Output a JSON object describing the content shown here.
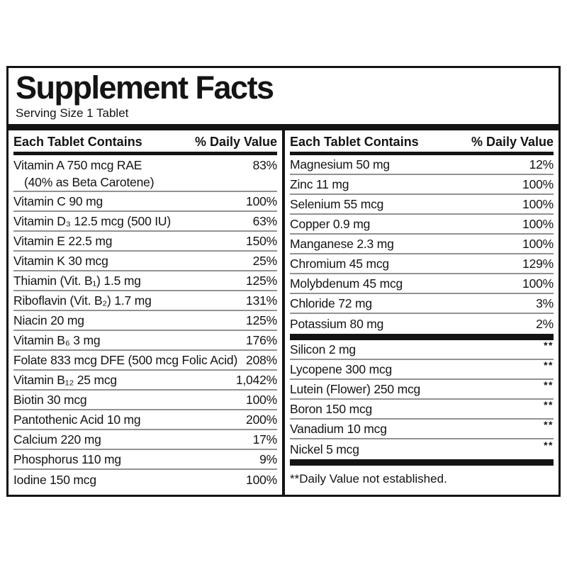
{
  "label": {
    "title": "Supplement Facts",
    "serving_size": "Serving Size 1 Tablet",
    "footnote": "**Daily Value not established.",
    "colors": {
      "text": "#141414",
      "thick_bar": "#141414",
      "row_separator": "#929292",
      "background": "#ffffff"
    },
    "columns": [
      {
        "header_name": "Each Tablet Contains",
        "header_value": "% Daily Value",
        "rows": [
          {
            "name": "Vitamin A 750 mcg RAE",
            "name2": "(40% as Beta Carotene)",
            "value": "83%"
          },
          {
            "name": "Vitamin C 90 mg",
            "value": "100%"
          },
          {
            "name": "Vitamin D₃ 12.5 mcg (500 IU)",
            "value": "63%"
          },
          {
            "name": "Vitamin E 22.5 mg",
            "value": "150%"
          },
          {
            "name": "Vitamin K 30 mcg",
            "value": "25%"
          },
          {
            "name": "Thiamin (Vit. B₁) 1.5 mg",
            "value": "125%"
          },
          {
            "name": "Riboflavin (Vit. B₂) 1.7 mg",
            "value": "131%"
          },
          {
            "name": "Niacin 20 mg",
            "value": "125%"
          },
          {
            "name": "Vitamin B₆ 3 mg",
            "value": "176%"
          },
          {
            "name": "Folate 833 mcg DFE (500 mcg Folic Acid)",
            "value": "208%"
          },
          {
            "name": "Vitamin B₁₂ 25 mcg",
            "value": "1,042%"
          },
          {
            "name": "Biotin 30 mcg",
            "value": "100%"
          },
          {
            "name": "Pantothenic Acid 10 mg",
            "value": "200%"
          },
          {
            "name": "Calcium 220 mg",
            "value": "17%"
          },
          {
            "name": "Phosphorus 110 mg",
            "value": "9%"
          },
          {
            "name": "Iodine 150 mcg",
            "value": "100%",
            "last": true
          }
        ]
      },
      {
        "header_name": "Each Tablet Contains",
        "header_value": "% Daily Value",
        "rows": [
          {
            "name": "Magnesium 50 mg",
            "value": "12%"
          },
          {
            "name": "Zinc 11 mg",
            "value": "100%"
          },
          {
            "name": "Selenium 55 mcg",
            "value": "100%"
          },
          {
            "name": "Copper 0.9 mg",
            "value": "100%"
          },
          {
            "name": "Manganese 2.3 mg",
            "value": "100%"
          },
          {
            "name": "Chromium 45 mcg",
            "value": "129%"
          },
          {
            "name": "Molybdenum 45 mcg",
            "value": "100%"
          },
          {
            "name": "Chloride 72 mg",
            "value": "3%"
          },
          {
            "name": "Potassium 80 mg",
            "value": "2%",
            "bar_after": true
          },
          {
            "name": "Silicon 2 mg",
            "value": "**",
            "star": true
          },
          {
            "name": "Lycopene 300 mcg",
            "value": "**",
            "star": true
          },
          {
            "name": "Lutein (Flower) 250 mcg",
            "value": "**",
            "star": true
          },
          {
            "name": "Boron 150 mcg",
            "value": "**",
            "star": true
          },
          {
            "name": "Vanadium 10 mcg",
            "value": "**",
            "star": true
          },
          {
            "name": "Nickel 5 mcg",
            "value": "**",
            "star": true,
            "bar_after": true
          }
        ]
      }
    ]
  }
}
